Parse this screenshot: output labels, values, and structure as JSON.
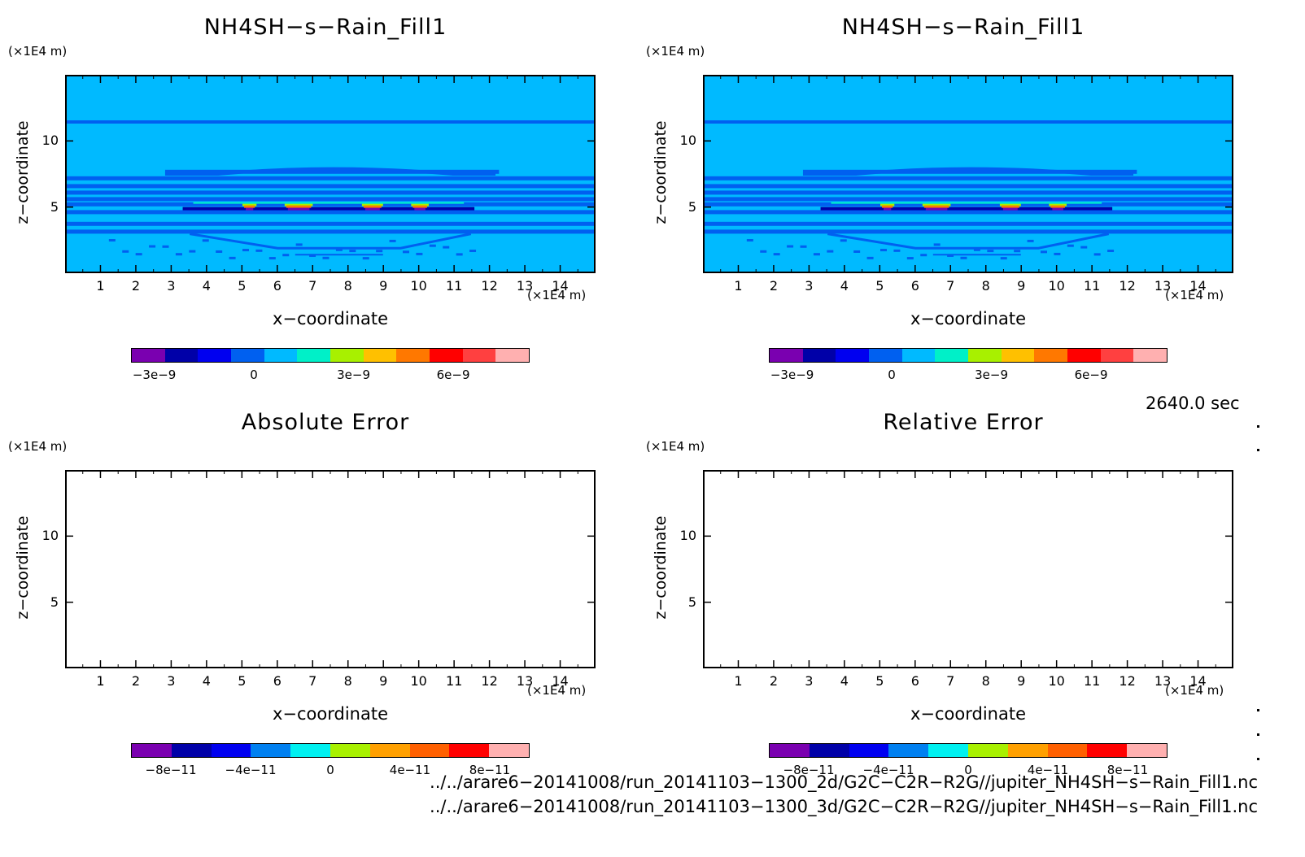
{
  "chart_data": [
    {
      "id": "top-left",
      "type": "heatmap",
      "title": "NH4SH−s−Rain_Fill1",
      "xlabel": "x−coordinate",
      "ylabel": "z−coordinate",
      "x_unit": "(×1E4 m)",
      "y_unit": "(×1E4 m)",
      "xlim": [
        0,
        15
      ],
      "ylim": [
        0,
        15
      ],
      "xticks": [
        "1",
        "2",
        "3",
        "4",
        "5",
        "6",
        "7",
        "8",
        "9",
        "10",
        "11",
        "12",
        "13",
        "14"
      ],
      "yticks": [
        "5",
        "10"
      ],
      "background_value": 0,
      "colorbar": {
        "colors": [
          "#7a00b0",
          "#0000a8",
          "#0000f0",
          "#0060f0",
          "#00baff",
          "#00f0c8",
          "#a8f000",
          "#ffc000",
          "#ff7800",
          "#ff0000",
          "#ff4040",
          "#ffb0b0"
        ],
        "tick_labels": [
          "−3e−9",
          "0",
          "3e−9",
          "6e−9"
        ]
      }
    },
    {
      "id": "top-right",
      "type": "heatmap",
      "title": "NH4SH−s−Rain_Fill1",
      "xlabel": "x−coordinate",
      "ylabel": "z−coordinate",
      "x_unit": "(×1E4 m)",
      "y_unit": "(×1E4 m)",
      "xlim": [
        0,
        15
      ],
      "ylim": [
        0,
        15
      ],
      "xticks": [
        "1",
        "2",
        "3",
        "4",
        "5",
        "6",
        "7",
        "8",
        "9",
        "10",
        "11",
        "12",
        "13",
        "14"
      ],
      "yticks": [
        "5",
        "10"
      ],
      "background_value": 0,
      "colorbar": {
        "colors": [
          "#7a00b0",
          "#0000a8",
          "#0000f0",
          "#0060f0",
          "#00baff",
          "#00f0c8",
          "#a8f000",
          "#ffc000",
          "#ff7800",
          "#ff0000",
          "#ff4040",
          "#ffb0b0"
        ],
        "tick_labels": [
          "−3e−9",
          "0",
          "3e−9",
          "6e−9"
        ]
      }
    },
    {
      "id": "bottom-left",
      "type": "heatmap",
      "title": "Absolute Error",
      "xlabel": "x−coordinate",
      "ylabel": "z−coordinate",
      "x_unit": "(×1E4 m)",
      "y_unit": "(×1E4 m)",
      "xlim": [
        0,
        15
      ],
      "ylim": [
        0,
        15
      ],
      "xticks": [
        "1",
        "2",
        "3",
        "4",
        "5",
        "6",
        "7",
        "8",
        "9",
        "10",
        "11",
        "12",
        "13",
        "14"
      ],
      "yticks": [
        "5",
        "10"
      ],
      "colorbar": {
        "colors": [
          "#7a00b0",
          "#0000a8",
          "#0000f0",
          "#0080f0",
          "#00f0f0",
          "#a8f000",
          "#ffa000",
          "#ff6000",
          "#ff0000",
          "#ffb0b0"
        ],
        "tick_labels": [
          "−8e−11",
          "−4e−11",
          "0",
          "4e−11",
          "8e−11"
        ]
      }
    },
    {
      "id": "bottom-right",
      "type": "heatmap",
      "title": "Relative Error",
      "xlabel": "x−coordinate",
      "ylabel": "z−coordinate",
      "x_unit": "(×1E4 m)",
      "y_unit": "(×1E4 m)",
      "xlim": [
        0,
        15
      ],
      "ylim": [
        0,
        15
      ],
      "xticks": [
        "1",
        "2",
        "3",
        "4",
        "5",
        "6",
        "7",
        "8",
        "9",
        "10",
        "11",
        "12",
        "13",
        "14"
      ],
      "yticks": [
        "5",
        "10"
      ],
      "colorbar": {
        "colors": [
          "#7a00b0",
          "#0000a8",
          "#0000f0",
          "#0080f0",
          "#00f0f0",
          "#a8f000",
          "#ffa000",
          "#ff6000",
          "#ff0000",
          "#ffb0b0"
        ],
        "tick_labels": [
          "−8e−11",
          "−4e−11",
          "0",
          "4e−11",
          "8e−11"
        ]
      }
    }
  ],
  "field_features": {
    "layer_heights": [
      11.5,
      7.7,
      7.2,
      6.6,
      6.1,
      5.6,
      5.2,
      4.6,
      3.7,
      3.1
    ],
    "peak_z": 4.9,
    "peak_segments": [
      [
        5.0,
        5.4
      ],
      [
        6.2,
        7.0
      ],
      [
        8.4,
        9.0
      ],
      [
        9.8,
        10.3
      ]
    ]
  },
  "timestamp": "2640.0 sec",
  "files": [
    "../../arare6−20141008/run_20141103−1300_2d/G2C−C2R−R2G//jupiter_NH4SH−s−Rain_Fill1.nc",
    "../../arare6−20141008/run_20141103−1300_3d/G2C−C2R−R2G//jupiter_NH4SH−s−Rain_Fill1.nc"
  ]
}
